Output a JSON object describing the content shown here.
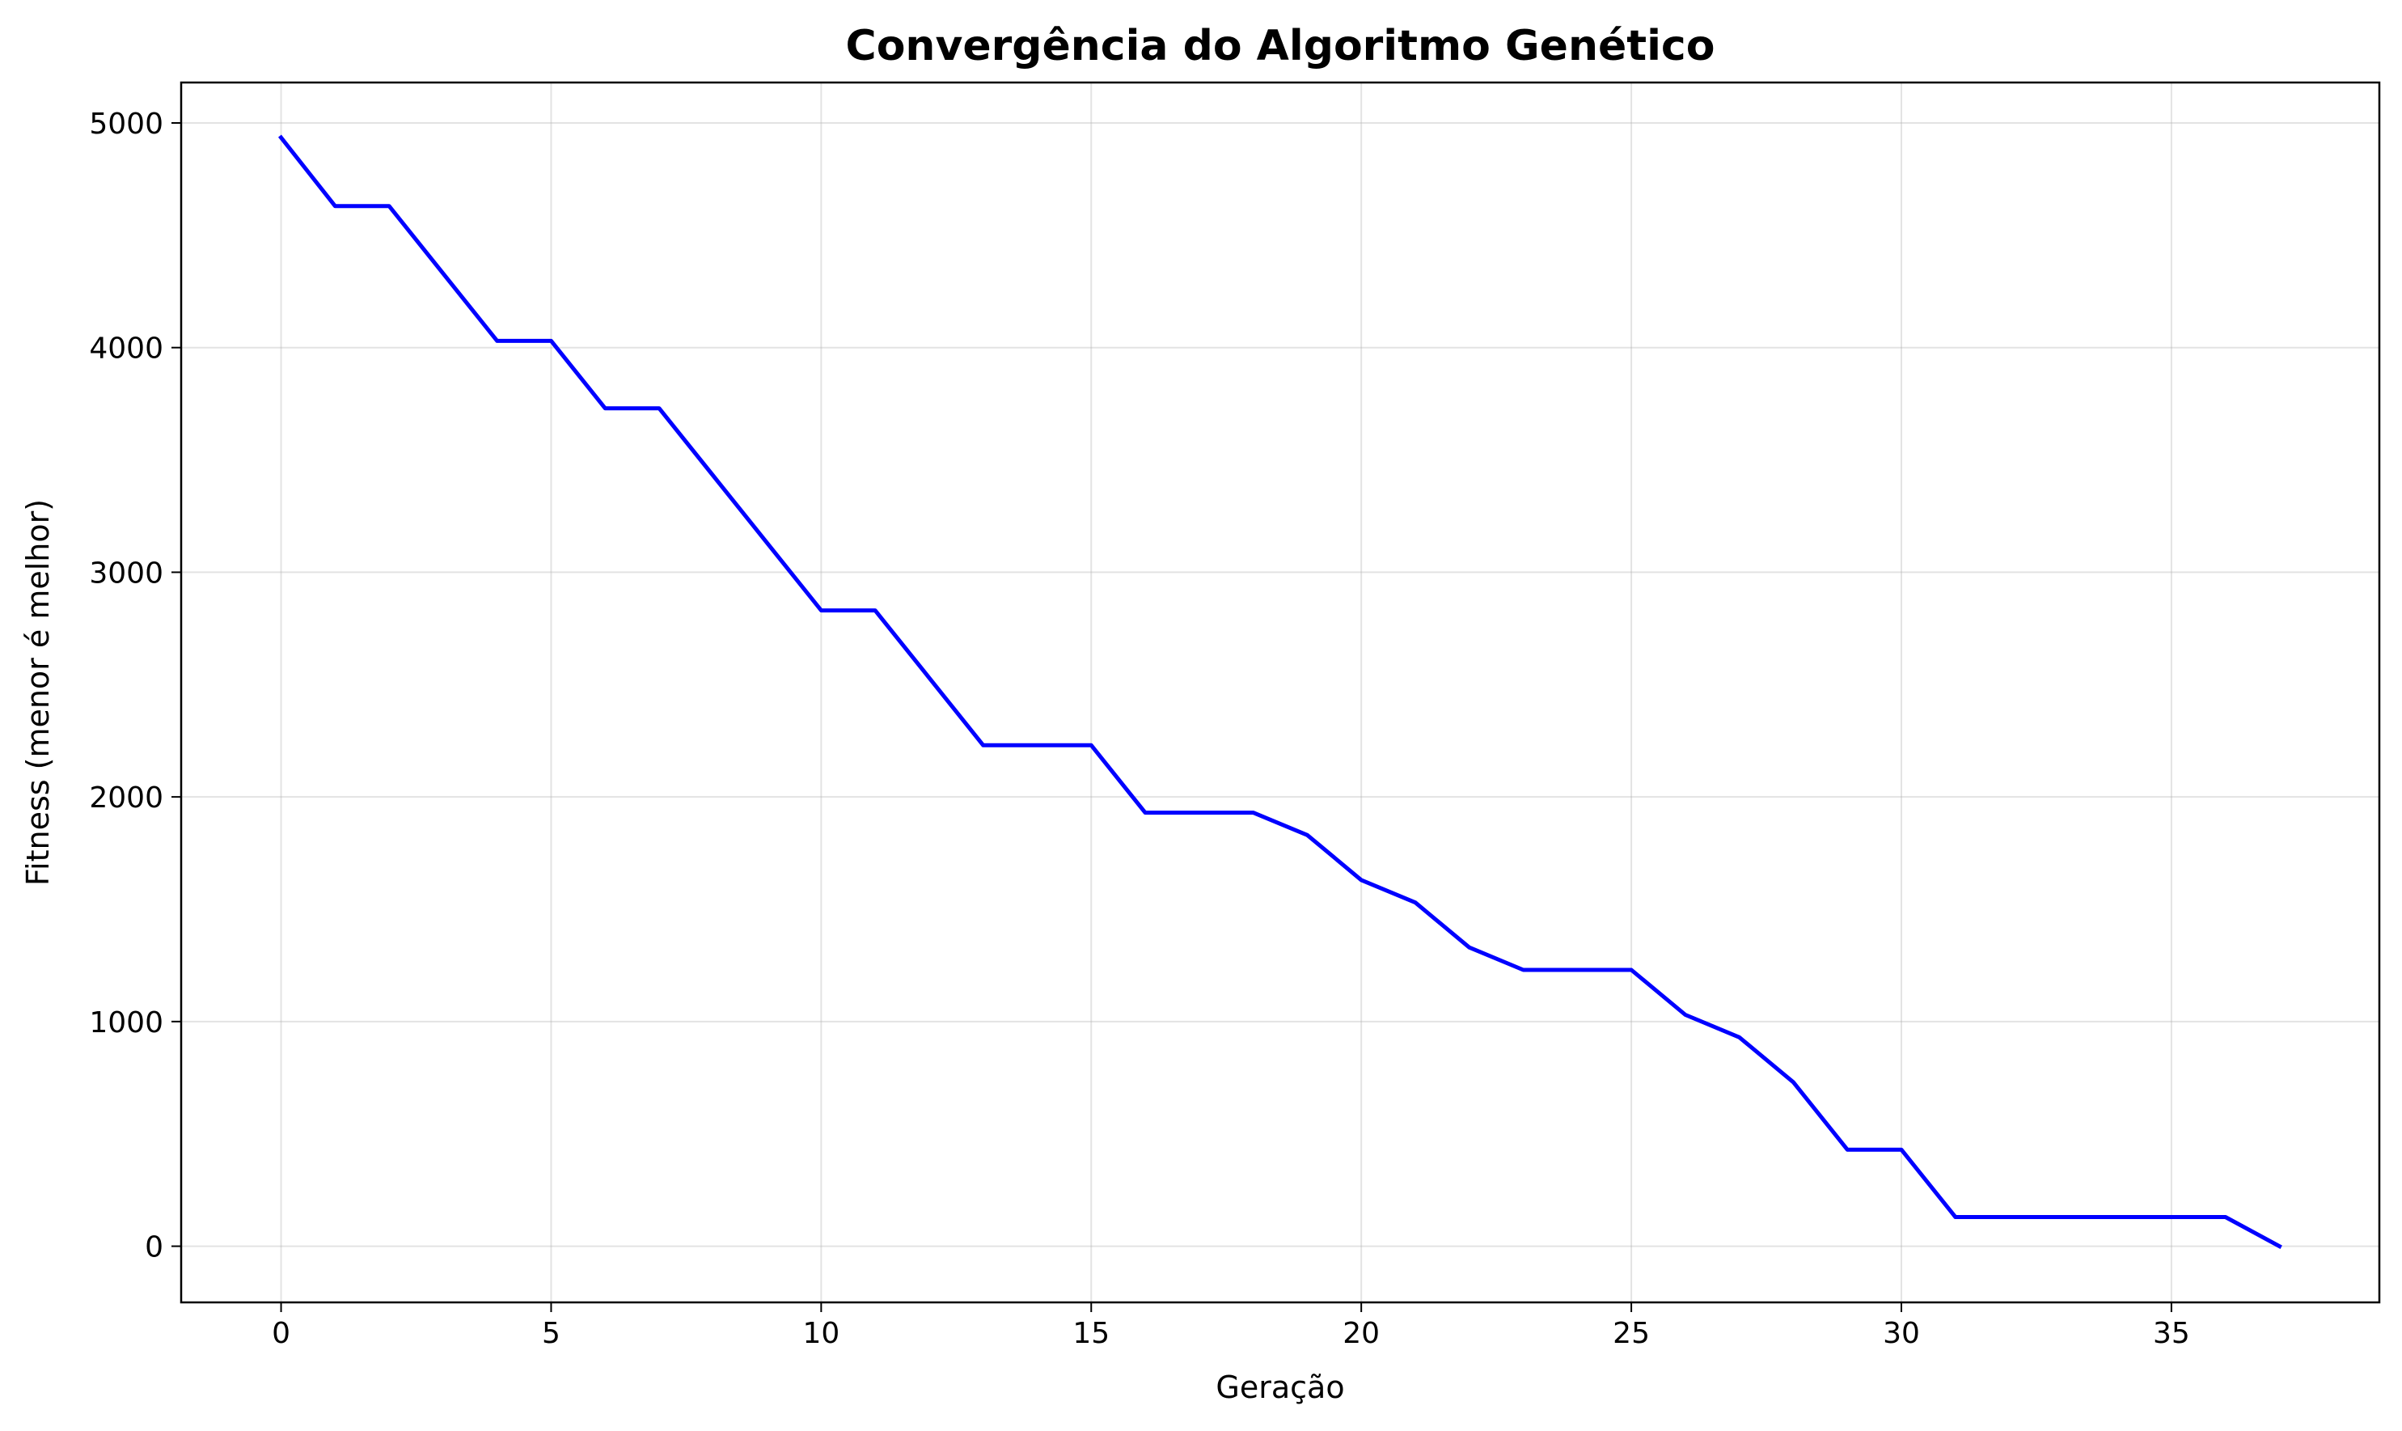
{
  "chart_data": {
    "type": "line",
    "title": "Convergência do Algoritmo Genético",
    "xlabel": "Geração",
    "ylabel": "Fitness (menor é melhor)",
    "xlim": [
      -1.85,
      38.85
    ],
    "ylim": [
      -250,
      5180
    ],
    "xticks": [
      0,
      5,
      10,
      15,
      20,
      25,
      30,
      35
    ],
    "yticks": [
      0,
      1000,
      2000,
      3000,
      4000,
      5000
    ],
    "grid": true,
    "series": [
      {
        "color": "#0000ff",
        "x": [
          0,
          1,
          2,
          3,
          4,
          5,
          6,
          7,
          8,
          9,
          10,
          11,
          12,
          13,
          14,
          15,
          16,
          17,
          18,
          19,
          20,
          21,
          22,
          23,
          24,
          25,
          26,
          27,
          28,
          29,
          30,
          31,
          32,
          33,
          34,
          35,
          36,
          37
        ],
        "values": [
          4935,
          4630,
          4630,
          4330,
          4030,
          4030,
          3730,
          3730,
          3430,
          3130,
          2830,
          2830,
          2530,
          2230,
          2230,
          2230,
          1930,
          1930,
          1930,
          1830,
          1630,
          1530,
          1330,
          1230,
          1230,
          1230,
          1030,
          930,
          730,
          430,
          430,
          130,
          130,
          130,
          130,
          130,
          130,
          0
        ]
      }
    ]
  }
}
